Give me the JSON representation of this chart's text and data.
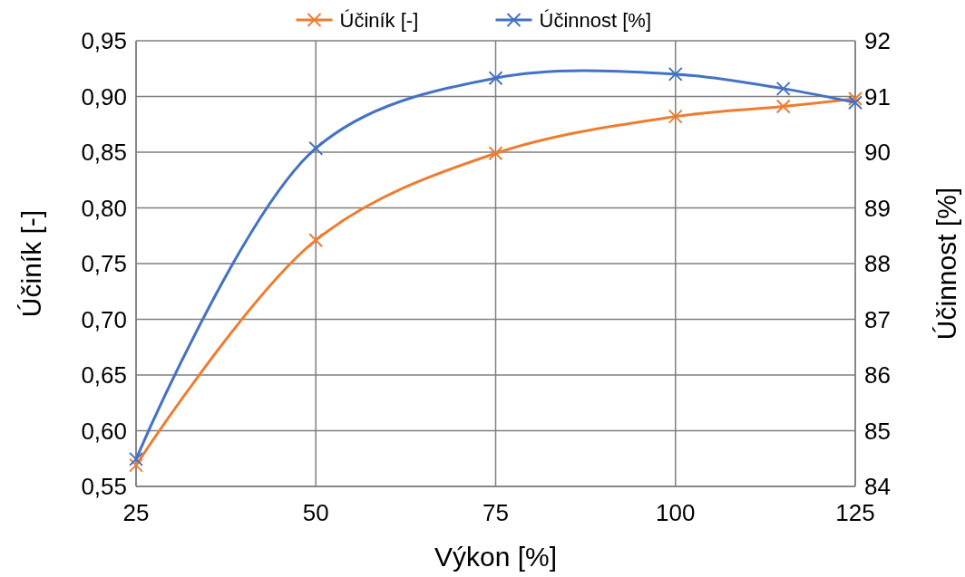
{
  "chart_data": {
    "type": "line",
    "xlabel": "Výkon [%]",
    "ylabel": "Účiník [-]",
    "y2label": "Účinnost [%]",
    "x": [
      25,
      50,
      75,
      100,
      115,
      125
    ],
    "series": [
      {
        "name": "Účiník [-]",
        "color": "#ed7d31",
        "values": [
          0.569,
          0.771,
          0.849,
          0.882,
          0.891,
          0.898
        ]
      },
      {
        "name": "Účinnost [%]",
        "color": "#4472c4",
        "axis": "y2",
        "values": [
          84.49,
          90.07,
          91.33,
          91.4,
          91.14,
          90.89
        ]
      }
    ],
    "xlim": [
      25,
      125
    ],
    "xticks": [
      25,
      50,
      75,
      100,
      125
    ],
    "ylim": [
      0.55,
      0.95
    ],
    "yticks": [
      {
        "value": 0.55,
        "label": "0,55"
      },
      {
        "value": 0.6,
        "label": "0,60"
      },
      {
        "value": 0.65,
        "label": "0,65"
      },
      {
        "value": 0.7,
        "label": "0,70"
      },
      {
        "value": 0.75,
        "label": "0,75"
      },
      {
        "value": 0.8,
        "label": "0,80"
      },
      {
        "value": 0.85,
        "label": "0,85"
      },
      {
        "value": 0.9,
        "label": "0,90"
      },
      {
        "value": 0.95,
        "label": "0,95"
      }
    ],
    "y2lim": [
      84,
      92
    ],
    "y2ticks": [
      84,
      85,
      86,
      87,
      88,
      89,
      90,
      91,
      92
    ],
    "grid": true,
    "legend": "top",
    "marker": "cross",
    "line_style": "solid"
  }
}
